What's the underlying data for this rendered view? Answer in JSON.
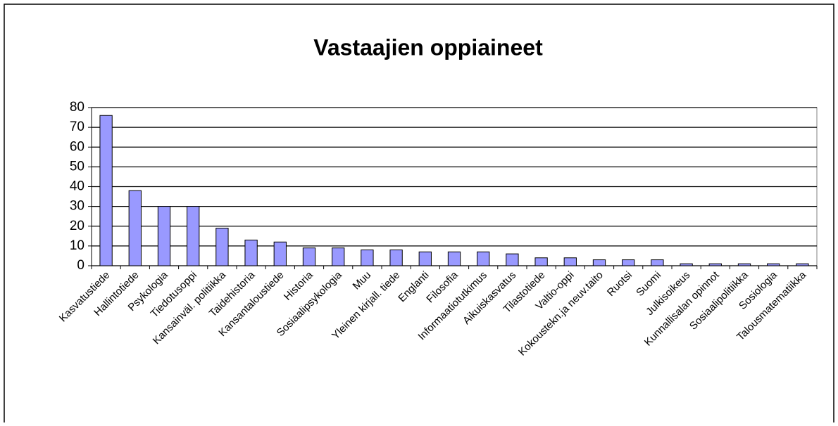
{
  "chart_data": {
    "type": "bar",
    "title": "Vastaajien oppiaineet",
    "categories": [
      "Kasvatustiede",
      "Hallintotiede",
      "Psykologia",
      "Tiedotusoppi",
      "Kansainväl. politiikka",
      "Taidehistoria",
      "Kansantaloustiede",
      "Historia",
      "Sosiaalipsykologia",
      "Muu",
      "Yleinen kirjall. tiede",
      "Englanti",
      "Filosofia",
      "Informaatiotutkimus",
      "Aikuiskasvatus",
      "Tilastotiede",
      "Valtio-oppi",
      "Kokoustekn.ja neuv.taito",
      "Ruotsi",
      "Suomi",
      "Julkisoikeus",
      "Kunnallisalan opinnot",
      "Sosiaalipolitiikka",
      "Sosiologia",
      "Talousmatematiikka"
    ],
    "values": [
      76,
      38,
      30,
      30,
      19,
      13,
      12,
      9,
      9,
      8,
      8,
      7,
      7,
      7,
      6,
      4,
      4,
      3,
      3,
      3,
      1,
      1,
      1,
      1,
      1
    ],
    "color": "#9999ff",
    "ylim": [
      0,
      80
    ],
    "yticks": [
      0,
      10,
      20,
      30,
      40,
      50,
      60,
      70,
      80
    ],
    "grid": true
  }
}
